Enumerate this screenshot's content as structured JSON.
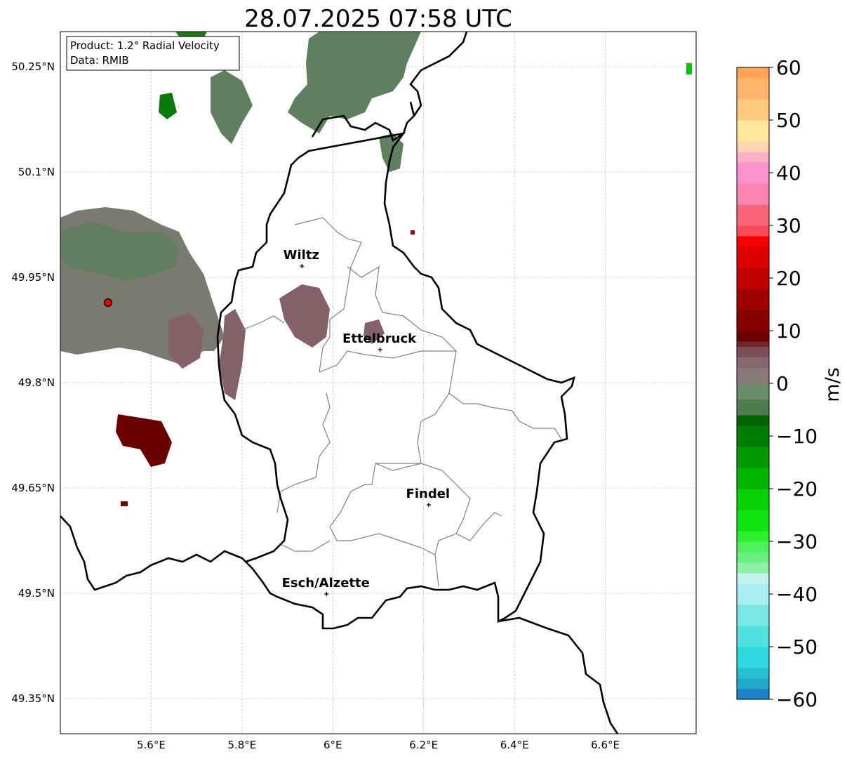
{
  "title": "28.07.2025 07:58 UTC",
  "info": {
    "product": "Product: 1.2° Radial Velocity",
    "data": "Data: RMIB"
  },
  "map": {
    "lon_range": [
      5.4,
      6.8
    ],
    "lat_range": [
      49.3,
      50.3
    ],
    "lon_ticks": [
      {
        "value": 5.6,
        "label": "5.6°E"
      },
      {
        "value": 5.8,
        "label": "5.8°E"
      },
      {
        "value": 6.0,
        "label": "6°E"
      },
      {
        "value": 6.2,
        "label": "6.2°E"
      },
      {
        "value": 6.4,
        "label": "6.4°E"
      },
      {
        "value": 6.6,
        "label": "6.6°E"
      }
    ],
    "lat_ticks": [
      {
        "value": 50.25,
        "label": "50.25°N"
      },
      {
        "value": 50.1,
        "label": "50.1°N"
      },
      {
        "value": 49.95,
        "label": "49.95°N"
      },
      {
        "value": 49.8,
        "label": "49.8°N"
      },
      {
        "value": 49.65,
        "label": "49.65°N"
      },
      {
        "value": 49.5,
        "label": "49.5°N"
      },
      {
        "value": 49.35,
        "label": "49.35°N"
      }
    ],
    "radar_site": {
      "lon": 5.505,
      "lat": 49.914
    },
    "cities": [
      {
        "name": "Wiltz",
        "lon": 5.932,
        "lat": 49.966
      },
      {
        "name": "Ettelbruck",
        "lon": 6.104,
        "lat": 49.847
      },
      {
        "name": "Findel",
        "lon": 6.211,
        "lat": 49.626
      },
      {
        "name": "Esch/Alzette",
        "lon": 5.986,
        "lat": 49.499
      }
    ]
  },
  "colorbar": {
    "label": "m/s",
    "min": -60,
    "max": 60,
    "ticks": [
      {
        "value": 60,
        "label": "60"
      },
      {
        "value": 50,
        "label": "50"
      },
      {
        "value": 40,
        "label": "40"
      },
      {
        "value": 30,
        "label": "30"
      },
      {
        "value": 20,
        "label": "20"
      },
      {
        "value": 10,
        "label": "10"
      },
      {
        "value": 0,
        "label": "0"
      },
      {
        "value": -10,
        "label": "−10"
      },
      {
        "value": -20,
        "label": "−20"
      },
      {
        "value": -30,
        "label": "−30"
      },
      {
        "value": -40,
        "label": "−40"
      },
      {
        "value": -50,
        "label": "−50"
      },
      {
        "value": -60,
        "label": "−60"
      }
    ],
    "stops": [
      {
        "from": -60,
        "to": -58,
        "color": "#1f7fc4"
      },
      {
        "from": -58,
        "to": -56,
        "color": "#22a8cc"
      },
      {
        "from": -56,
        "to": -54,
        "color": "#26bfd2"
      },
      {
        "from": -54,
        "to": -50,
        "color": "#2ed8dc"
      },
      {
        "from": -50,
        "to": -46,
        "color": "#4fe0e0"
      },
      {
        "from": -46,
        "to": -42,
        "color": "#7ae6e6"
      },
      {
        "from": -42,
        "to": -38,
        "color": "#a8eeee"
      },
      {
        "from": -38,
        "to": -36,
        "color": "#c4f2f0"
      },
      {
        "from": -36,
        "to": -34,
        "color": "#8ef0a8"
      },
      {
        "from": -34,
        "to": -32,
        "color": "#6af080"
      },
      {
        "from": -32,
        "to": -30,
        "color": "#4ef060"
      },
      {
        "from": -30,
        "to": -28,
        "color": "#2cf02c"
      },
      {
        "from": -28,
        "to": -24,
        "color": "#10e410"
      },
      {
        "from": -24,
        "to": -20,
        "color": "#06d006"
      },
      {
        "from": -20,
        "to": -16,
        "color": "#00b400"
      },
      {
        "from": -16,
        "to": -12,
        "color": "#009800"
      },
      {
        "from": -12,
        "to": -8,
        "color": "#007c00"
      },
      {
        "from": -8,
        "to": -6,
        "color": "#006400"
      },
      {
        "from": -6,
        "to": -3,
        "color": "#507a50"
      },
      {
        "from": -3,
        "to": 0,
        "color": "#6a8a6a"
      },
      {
        "from": 0,
        "to": 3,
        "color": "#8a7878"
      },
      {
        "from": 3,
        "to": 5,
        "color": "#886670"
      },
      {
        "from": 5,
        "to": 7,
        "color": "#7e4e58"
      },
      {
        "from": 7,
        "to": 8,
        "color": "#6e2828"
      },
      {
        "from": 8,
        "to": 10,
        "color": "#6a0000"
      },
      {
        "from": 10,
        "to": 14,
        "color": "#860000"
      },
      {
        "from": 14,
        "to": 18,
        "color": "#a00000"
      },
      {
        "from": 18,
        "to": 22,
        "color": "#c00000"
      },
      {
        "from": 22,
        "to": 26,
        "color": "#dc0000"
      },
      {
        "from": 26,
        "to": 28,
        "color": "#f40000"
      },
      {
        "from": 28,
        "to": 30,
        "color": "#fa4a5a"
      },
      {
        "from": 30,
        "to": 34,
        "color": "#fa6478"
      },
      {
        "from": 34,
        "to": 38,
        "color": "#fb84b0"
      },
      {
        "from": 38,
        "to": 42,
        "color": "#fc92cc"
      },
      {
        "from": 42,
        "to": 44,
        "color": "#fcb0c8"
      },
      {
        "from": 44,
        "to": 46,
        "color": "#fdd4b4"
      },
      {
        "from": 46,
        "to": 50,
        "color": "#ffe89c"
      },
      {
        "from": 50,
        "to": 54,
        "color": "#ffca80"
      },
      {
        "from": 54,
        "to": 58,
        "color": "#ffb66c"
      },
      {
        "from": 58,
        "to": 60,
        "color": "#ffa456"
      }
    ]
  },
  "colors": {
    "border": "#000000",
    "cantons": "#808080",
    "grid": "#b0b0b0",
    "radar_dot": "#e00000"
  }
}
